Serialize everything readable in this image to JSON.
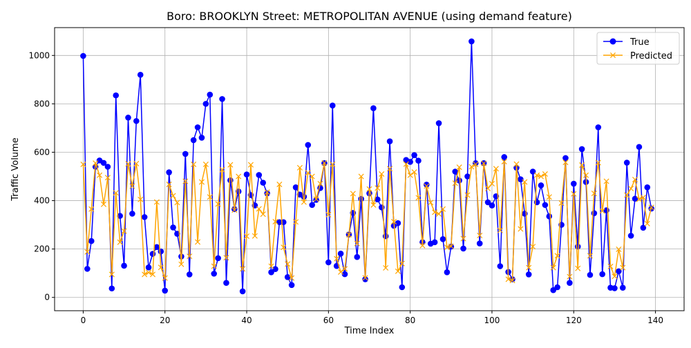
{
  "chart_data": {
    "type": "line",
    "title": "Boro: BROOKLYN Street: METROPOLITAN AVENUE (using demand feature)",
    "xlabel": "Time Index",
    "ylabel": "Traffic Volume",
    "xlim": [
      -7,
      147
    ],
    "ylim": [
      -55,
      1115
    ],
    "x_ticks": [
      0,
      20,
      40,
      60,
      80,
      100,
      120,
      140
    ],
    "y_ticks": [
      0,
      200,
      400,
      600,
      800,
      1000
    ],
    "grid": true,
    "legend_position": "top-right",
    "series": [
      {
        "name": "True",
        "color": "#0000ff",
        "marker": "circle",
        "values": [
          998,
          118,
          233,
          540,
          566,
          556,
          540,
          37,
          835,
          337,
          131,
          743,
          346,
          729,
          920,
          332,
          124,
          180,
          208,
          190,
          28,
          517,
          289,
          263,
          169,
          593,
          95,
          650,
          703,
          660,
          800,
          838,
          98,
          162,
          820,
          60,
          484,
          365,
          438,
          25,
          508,
          423,
          380,
          506,
          474,
          430,
          104,
          117,
          311,
          311,
          84,
          51,
          455,
          425,
          416,
          630,
          382,
          403,
          452,
          555,
          145,
          793,
          130,
          181,
          96,
          260,
          349,
          167,
          407,
          75,
          430,
          782,
          405,
          372,
          253,
          645,
          296,
          307,
          42,
          568,
          560,
          588,
          565,
          228,
          466,
          222,
          228,
          720,
          241,
          104,
          210,
          520,
          483,
          202,
          500,
          1058,
          555,
          223,
          555,
          393,
          380,
          418,
          129,
          580,
          105,
          75,
          536,
          488,
          346,
          95,
          520,
          393,
          463,
          382,
          335,
          30,
          42,
          300,
          576,
          60,
          470,
          210,
          613,
          477,
          93,
          348,
          703,
          96,
          360,
          40,
          38,
          108,
          40,
          557,
          255,
          408,
          622,
          288,
          455,
          367
        ]
      },
      {
        "name": "Predicted",
        "color": "#ffa500",
        "marker": "x",
        "values": [
          550,
          188,
          365,
          555,
          505,
          385,
          495,
          95,
          432,
          228,
          274,
          552,
          460,
          553,
          405,
          95,
          103,
          95,
          394,
          124,
          80,
          467,
          420,
          392,
          137,
          480,
          170,
          550,
          229,
          477,
          550,
          415,
          129,
          386,
          528,
          164,
          548,
          361,
          500,
          118,
          253,
          548,
          254,
          366,
          344,
          435,
          129,
          313,
          467,
          207,
          138,
          80,
          312,
          536,
          394,
          515,
          500,
          406,
          470,
          556,
          342,
          550,
          160,
          105,
          118,
          259,
          429,
          223,
          500,
          81,
          448,
          382,
          452,
          510,
          122,
          532,
          313,
          108,
          140,
          551,
          505,
          518,
          412,
          214,
          460,
          392,
          352,
          345,
          365,
          207,
          211,
          472,
          538,
          243,
          423,
          540,
          550,
          256,
          554,
          450,
          470,
          532,
          277,
          561,
          75,
          70,
          551,
          283,
          477,
          123,
          210,
          505,
          500,
          510,
          415,
          123,
          172,
          390,
          558,
          86,
          428,
          120,
          547,
          505,
          172,
          430,
          557,
          357,
          480,
          128,
          87,
          199,
          123,
          423,
          450,
          487,
          406,
          413,
          305,
          372
        ]
      }
    ]
  }
}
